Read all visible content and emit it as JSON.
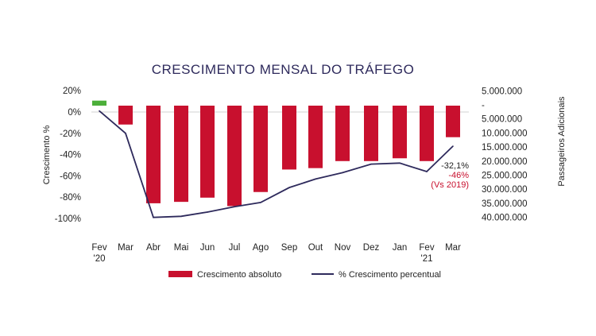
{
  "chart_data": {
    "type": "bar+line",
    "title": "CRESCIMENTO MENSAL DO TRÁFEGO",
    "categories": [
      "Fev\n'20",
      "Mar",
      "Abr",
      "Mai",
      "Jun",
      "Jul",
      "Ago",
      "Sep",
      "Out",
      "Nov",
      "Dez",
      "Jan",
      "Fev\n'21",
      "Mar"
    ],
    "ylabel_left": "Crescimento %",
    "ylabel_right": "Passageiros Adicionais",
    "left_ticks": [
      "20%",
      "0%",
      "-20%",
      "-40%",
      "-60%",
      "-80%",
      "-100%"
    ],
    "left_ylim": [
      -100,
      20
    ],
    "right_ticks": [
      "5.000.000",
      "-",
      "5.000.000",
      "10.000.000",
      "15.000.000",
      "20.000.000",
      "25.000.000",
      "30.000.000",
      "35.000.000",
      "40.000.000"
    ],
    "right_ylim": [
      5000000,
      -40000000
    ],
    "series": [
      {
        "name": "Crescimento absoluto",
        "type": "bar",
        "axis": "right",
        "color": "#c8102e",
        "positive_color": "#4caf3a",
        "values": [
          1500000,
          -7000000,
          -35000000,
          -34500000,
          -33000000,
          -36000000,
          -31000000,
          -23000000,
          -22500000,
          -20000000,
          -20000000,
          -19000000,
          -20000000,
          -11500000
        ]
      },
      {
        "name": "% Crescimento percentual",
        "type": "line",
        "axis": "left",
        "color": "#2e2a5c",
        "values": [
          1,
          -20,
          -99,
          -98,
          -94,
          -89,
          -85,
          -71,
          -63,
          -57,
          -49,
          -48,
          -56,
          -32.1
        ]
      }
    ],
    "annotations": [
      {
        "text": "-32,1%",
        "color": "#222222"
      },
      {
        "text": "-46%",
        "color": "#c8102e"
      },
      {
        "text": "(Vs 2019)",
        "color": "#c8102e"
      }
    ],
    "legend": "bottom",
    "grid": false
  }
}
